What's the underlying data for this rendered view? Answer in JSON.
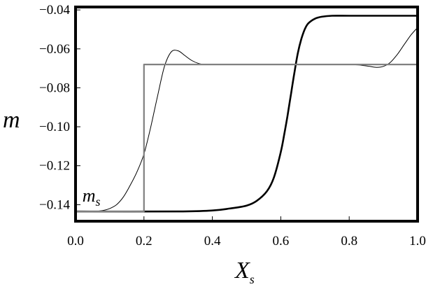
{
  "chart_data": {
    "type": "line",
    "xlabel": "X",
    "xlabel_sub": "s",
    "ylabel": "m",
    "xlim": [
      0.0,
      1.0
    ],
    "ylim": [
      -0.1485,
      -0.0385
    ],
    "xticks": [
      "0.0",
      "0.2",
      "0.4",
      "0.6",
      "0.8",
      "1.0"
    ],
    "yticks": [
      "−0.14",
      "−0.12",
      "−0.10",
      "−0.08",
      "−0.06",
      "−0.04"
    ],
    "grid": false,
    "annotation": {
      "text": "m",
      "sub": "s",
      "x": 0.02,
      "y": -0.1385
    },
    "series": [
      {
        "style": "thin-black",
        "x": [
          0.0,
          0.05,
          0.08,
          0.1,
          0.12,
          0.14,
          0.16,
          0.18,
          0.2,
          0.22,
          0.24,
          0.26,
          0.28,
          0.3,
          0.32,
          0.34,
          0.36,
          0.38,
          0.4,
          0.45,
          0.5,
          0.6,
          0.7,
          0.8,
          0.84,
          0.86,
          0.88,
          0.9,
          0.92,
          0.94,
          0.96,
          0.98,
          1.0
        ],
        "y": [
          -0.1435,
          -0.1435,
          -0.143,
          -0.142,
          -0.14,
          -0.136,
          -0.13,
          -0.123,
          -0.114,
          -0.1,
          -0.084,
          -0.069,
          -0.0615,
          -0.061,
          -0.0635,
          -0.066,
          -0.0675,
          -0.068,
          -0.068,
          -0.068,
          -0.068,
          -0.068,
          -0.068,
          -0.068,
          -0.0685,
          -0.069,
          -0.0695,
          -0.069,
          -0.067,
          -0.063,
          -0.058,
          -0.053,
          -0.049
        ]
      },
      {
        "style": "thick-black",
        "x": [
          0.0,
          0.3,
          0.4,
          0.45,
          0.5,
          0.53,
          0.56,
          0.58,
          0.6,
          0.61,
          0.62,
          0.63,
          0.64,
          0.65,
          0.66,
          0.67,
          0.68,
          0.7,
          0.72,
          0.75,
          0.8,
          0.9,
          1.0
        ],
        "y": [
          -0.1435,
          -0.1435,
          -0.143,
          -0.142,
          -0.1405,
          -0.138,
          -0.133,
          -0.126,
          -0.113,
          -0.104,
          -0.094,
          -0.083,
          -0.072,
          -0.062,
          -0.055,
          -0.05,
          -0.047,
          -0.0445,
          -0.0435,
          -0.043,
          -0.043,
          -0.043,
          -0.043
        ]
      },
      {
        "style": "gray-step",
        "x": [
          0.0,
          0.2,
          0.2,
          1.0
        ],
        "y": [
          -0.1435,
          -0.1435,
          -0.068,
          -0.068
        ]
      }
    ]
  }
}
